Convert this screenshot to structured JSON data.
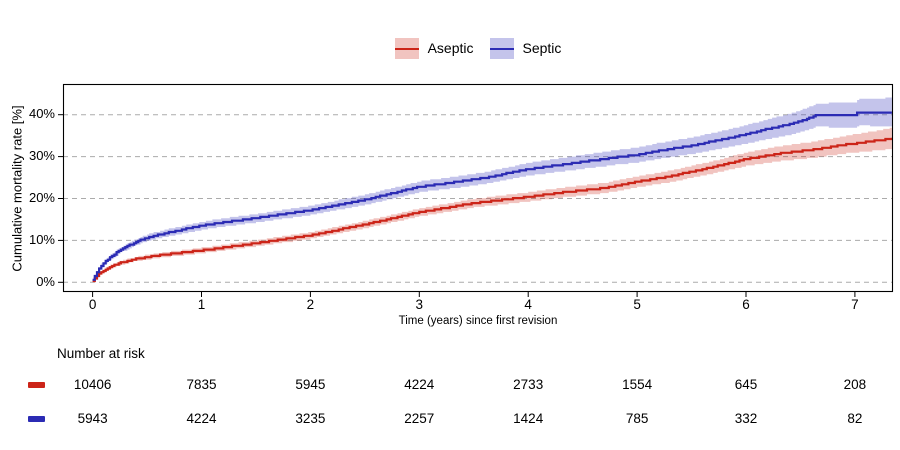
{
  "figure": {
    "background": "#FFFFFF",
    "text_color": "#000000",
    "gridline_color": "#ABABAB"
  },
  "legend": {
    "entries": [
      {
        "label": "Aseptic"
      },
      {
        "label": "Septic"
      }
    ]
  },
  "chart_data": {
    "type": "line",
    "subtype": "kaplan-meier cumulative mortality with confidence bands",
    "title": "",
    "xlabel": "Time (years) since first revision",
    "ylabel": "Cumulative mortality rate [%]",
    "xticks": [
      0,
      1,
      2,
      3,
      4,
      5,
      6,
      7
    ],
    "ytick_labels": [
      "0%",
      "10%",
      "20%",
      "30%",
      "40%"
    ],
    "ytick_values": [
      0,
      10,
      20,
      30,
      40
    ],
    "xlim": [
      -0.27,
      7.35
    ],
    "ylim": [
      -2.3,
      47.4
    ],
    "grid": "horizontal dashed",
    "legend_position": "top-center",
    "series": [
      {
        "name": "Aseptic",
        "color": "#CC2418",
        "band_color": "rgba(204,36,24,0.27)",
        "line": [
          [
            0,
            0.4
          ],
          [
            0.04,
            1.5
          ],
          [
            0.08,
            2.5
          ],
          [
            0.15,
            3.6
          ],
          [
            0.25,
            4.6
          ],
          [
            0.4,
            5.6
          ],
          [
            0.6,
            6.4
          ],
          [
            0.8,
            7.0
          ],
          [
            1.0,
            7.6
          ],
          [
            1.5,
            9.3
          ],
          [
            2.0,
            11.2
          ],
          [
            2.5,
            13.8
          ],
          [
            3.0,
            16.7
          ],
          [
            3.5,
            18.9
          ],
          [
            4.0,
            20.4
          ],
          [
            4.3,
            21.4
          ],
          [
            4.7,
            22.5
          ],
          [
            5.0,
            24.0
          ],
          [
            5.3,
            25.3
          ],
          [
            5.7,
            27.5
          ],
          [
            6.0,
            29.4
          ],
          [
            6.3,
            30.7
          ],
          [
            6.6,
            31.6
          ],
          [
            6.9,
            32.8
          ],
          [
            7.1,
            33.5
          ],
          [
            7.25,
            34.0
          ],
          [
            7.35,
            34.4
          ]
        ],
        "band_halfwidth": [
          [
            0,
            0.15
          ],
          [
            0.2,
            0.45
          ],
          [
            0.5,
            0.55
          ],
          [
            1,
            0.65
          ],
          [
            2,
            0.8
          ],
          [
            3,
            0.95
          ],
          [
            4,
            1.1
          ],
          [
            5,
            1.3
          ],
          [
            5.8,
            1.5
          ],
          [
            6.4,
            1.8
          ],
          [
            6.9,
            2.1
          ],
          [
            7.35,
            2.5
          ]
        ]
      },
      {
        "name": "Septic",
        "color": "#2B2BB4",
        "band_color": "rgba(60,60,190,0.30)",
        "line": [
          [
            0,
            0.5
          ],
          [
            0.04,
            2.5
          ],
          [
            0.08,
            4.0
          ],
          [
            0.15,
            5.8
          ],
          [
            0.25,
            7.6
          ],
          [
            0.35,
            9.0
          ],
          [
            0.45,
            10.2
          ],
          [
            0.55,
            11.0
          ],
          [
            0.7,
            11.9
          ],
          [
            0.85,
            12.7
          ],
          [
            1.0,
            13.5
          ],
          [
            1.2,
            14.3
          ],
          [
            1.5,
            15.3
          ],
          [
            2.0,
            17.2
          ],
          [
            2.5,
            19.7
          ],
          [
            3.0,
            22.8
          ],
          [
            3.3,
            23.8
          ],
          [
            3.6,
            24.9
          ],
          [
            4.0,
            27.0
          ],
          [
            4.4,
            28.4
          ],
          [
            4.8,
            29.8
          ],
          [
            5.0,
            30.4
          ],
          [
            5.2,
            31.4
          ],
          [
            5.5,
            32.6
          ],
          [
            5.8,
            34.2
          ],
          [
            6.0,
            35.3
          ],
          [
            6.2,
            36.6
          ],
          [
            6.4,
            37.7
          ],
          [
            6.55,
            38.9
          ],
          [
            6.65,
            39.9
          ],
          [
            7.0,
            39.9
          ],
          [
            7.03,
            40.6
          ],
          [
            7.35,
            40.6
          ]
        ],
        "band_halfwidth": [
          [
            0,
            0.2
          ],
          [
            0.2,
            0.6
          ],
          [
            0.5,
            0.8
          ],
          [
            1,
            0.95
          ],
          [
            2,
            1.1
          ],
          [
            3,
            1.3
          ],
          [
            4,
            1.5
          ],
          [
            5,
            1.8
          ],
          [
            5.8,
            2.1
          ],
          [
            6.4,
            2.5
          ],
          [
            6.8,
            2.9
          ],
          [
            7.05,
            3.2
          ],
          [
            7.35,
            3.4
          ]
        ]
      }
    ]
  },
  "risk_table": {
    "header": "Number at risk",
    "time_points": [
      0,
      1,
      2,
      3,
      4,
      5,
      6,
      7
    ],
    "rows": [
      {
        "group": "Aseptic",
        "counts": [
          "10406",
          "7835",
          "5945",
          "4224",
          "2733",
          "1554",
          "645",
          "208"
        ]
      },
      {
        "group": "Septic",
        "counts": [
          "5943",
          "4224",
          "3235",
          "2257",
          "1424",
          "785",
          "332",
          "82"
        ]
      }
    ]
  }
}
